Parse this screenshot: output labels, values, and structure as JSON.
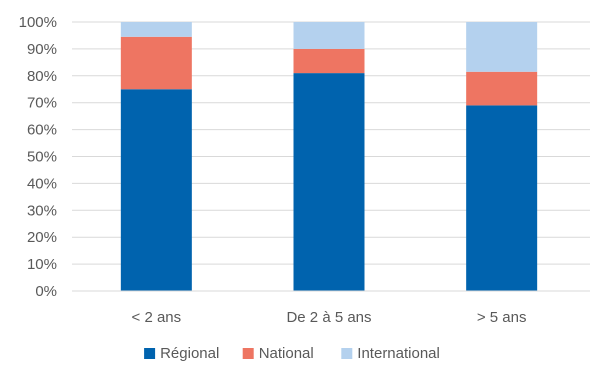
{
  "chart_data": {
    "type": "bar",
    "stacked": true,
    "categories": [
      "< 2 ans",
      "De 2 à 5 ans",
      "> 5 ans"
    ],
    "series": [
      {
        "name": "Régional",
        "values": [
          75,
          81,
          69
        ],
        "color": "#0063AE"
      },
      {
        "name": "National",
        "values": [
          19.5,
          9,
          12.5
        ],
        "color": "#EE7562"
      },
      {
        "name": "International",
        "values": [
          5.5,
          10,
          18.5
        ],
        "color": "#B4D1EE"
      }
    ],
    "ylim": [
      0,
      100
    ],
    "yticks": [
      "0%",
      "10%",
      "20%",
      "30%",
      "40%",
      "50%",
      "60%",
      "70%",
      "80%",
      "90%",
      "100%"
    ],
    "grid": true,
    "legend_position": "bottom",
    "title": "",
    "xlabel": "",
    "ylabel": ""
  }
}
